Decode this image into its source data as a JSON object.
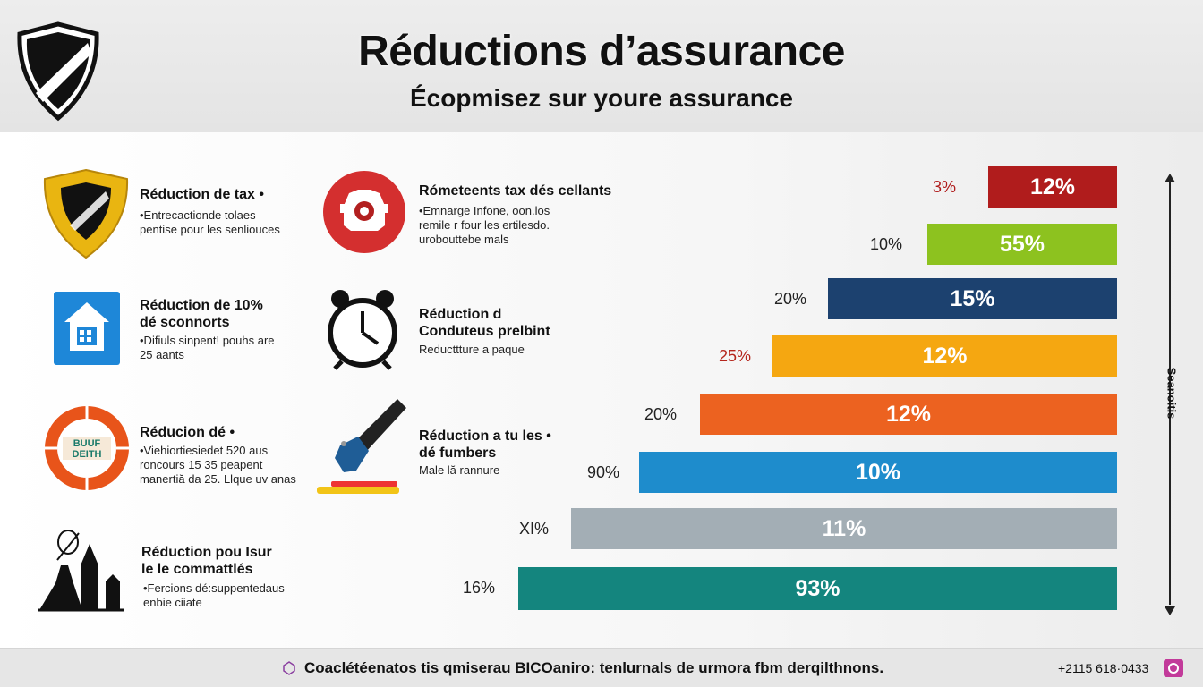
{
  "header": {
    "title": "Réductions d’assurance",
    "subtitle": "Écopmisez sur youre assurance",
    "logo_icon": "shield-icon"
  },
  "items": [
    {
      "icon": "shield-icon",
      "title": "Réduction de tax •",
      "desc": [
        "•Entrecactionde tolaes",
        "pentise pour les senliouces"
      ]
    },
    {
      "icon": "house-icon",
      "title": "Réduction de 10%\ndé sconnorts",
      "desc": [
        "•Difiuls sinpent! pouhs are",
        "25 aants"
      ]
    },
    {
      "icon": "badge-icon",
      "badge_text": "BUUF\nDEITH",
      "title": "Réducion dé •",
      "desc": [
        "•Viehiortiesiedet 520 aus",
        "roncours 15 35 peapent",
        "manertiă da 25. Llque uv anas"
      ]
    },
    {
      "icon": "monument-icon",
      "title": "Réduction pou Isur\nle le commattlés",
      "desc": [
        "•Fercions dé:suppentedaus",
        "enbie ciiate"
      ]
    },
    {
      "icon": "car-icon",
      "title": "Rómeteents tax dés cellants",
      "desc": [
        "•Emnarge Infone, oon.los",
        "remile r four les ertilesdo.",
        "urobouttebe mals"
      ]
    },
    {
      "icon": "alarm-clock-icon",
      "title": "Réduction d\nConduteus prelbint",
      "desc": [
        "Reducttture a paque"
      ]
    },
    {
      "icon": "flashlight-icon",
      "title": "Réduction a tu les •\ndé fumbers",
      "desc": [
        "Male lă rannure"
      ]
    }
  ],
  "chart_data": {
    "type": "bar",
    "title": "",
    "bars": [
      {
        "label": "3%",
        "value_label": "12%",
        "color": "#b01c1c",
        "label_color": "#b01c1c"
      },
      {
        "label": "10%",
        "value_label": "55%",
        "color": "#8dc21f",
        "label_color": "#222222"
      },
      {
        "label": "20%",
        "value_label": "15%",
        "color": "#1c416f",
        "label_color": "#222222"
      },
      {
        "label": "25%",
        "value_label": "12%",
        "color": "#f5a711",
        "label_color": "#b5261d"
      },
      {
        "label": "20%",
        "value_label": "12%",
        "color": "#ec6220",
        "label_color": "#222222"
      },
      {
        "label": "90%",
        "value_label": "10%",
        "color": "#1e8ccc",
        "label_color": "#222222"
      },
      {
        "label": "XI%",
        "value_label": "11%",
        "color": "#a3aeb5",
        "label_color": "#222222"
      },
      {
        "label": "16%",
        "value_label": "93%",
        "color": "#14857e",
        "label_color": "#222222"
      }
    ],
    "axis_label": "Seanoitis"
  },
  "footer": {
    "text": "Coaclétéenatos tis qmiserau BICOaniro: tenlurnals de urmora fbm derqilthnons.",
    "phone": "+2115 618·0433",
    "left_icon": "info-icon",
    "right_icon": "phone-icon"
  }
}
